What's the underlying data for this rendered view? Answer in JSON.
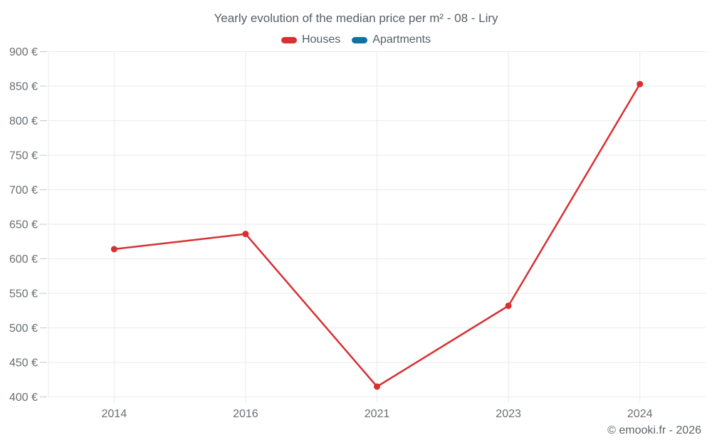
{
  "title": "Yearly evolution of the median price per m² - 08 - Liry",
  "attribution": "© emooki.fr - 2026",
  "colors": {
    "houses": "#d93032",
    "apartments": "#0f72a5",
    "grid": "#e9eaeb",
    "tick": "#c6c9cc",
    "axis_text": "#696f75",
    "title_text": "#575e66"
  },
  "legend": {
    "items": [
      {
        "label": "Houses",
        "color": "#d93032"
      },
      {
        "label": "Apartments",
        "color": "#0f72a5"
      }
    ]
  },
  "chart_data": {
    "type": "line",
    "title": "Yearly evolution of the median price per m² - 08 - Liry",
    "categories": [
      "2014",
      "2016",
      "2021",
      "2023",
      "2024"
    ],
    "series": [
      {
        "name": "Houses",
        "color": "#d93032",
        "values": [
          614,
          636,
          415,
          532,
          853
        ]
      },
      {
        "name": "Apartments",
        "color": "#0f72a5",
        "values": []
      }
    ],
    "xlabel": "",
    "ylabel": "",
    "ylim": [
      400,
      900
    ],
    "ytick_step": 50,
    "ytick_suffix": " €",
    "grid": true,
    "legend_position": "top",
    "annotations": [
      "© emooki.fr - 2026"
    ]
  }
}
